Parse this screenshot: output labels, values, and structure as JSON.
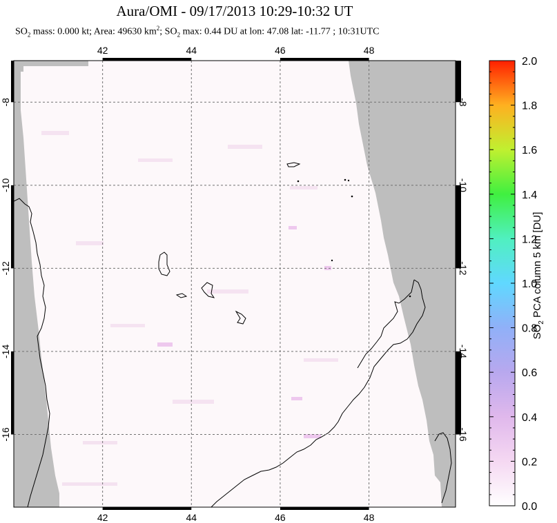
{
  "title": "Aura/OMI - 09/17/2013 10:29-10:32 UT",
  "subtitle": {
    "part1": "SO",
    "sub1": "2",
    "part2": " mass: 0.000 kt; Area: 49630 km",
    "sup1": "2",
    "part3": "; SO",
    "sub2": "2",
    "part4": " max: 0.44 DU at lon: 47.08 lat: -11.77 ; 10:31UTC"
  },
  "map": {
    "lon_ticks": [
      "42",
      "44",
      "46",
      "48"
    ],
    "lat_ticks": [
      "-8",
      "-10",
      "-12",
      "-14",
      "-16"
    ],
    "lon_values": [
      42,
      44,
      46,
      48
    ],
    "lat_values": [
      -8,
      -10,
      -12,
      -14,
      -16
    ],
    "lon_range": [
      40.0,
      49.95
    ],
    "lat_range": [
      -17.75,
      -7.0
    ],
    "grid": true,
    "no_data_color": "#bebebe",
    "background_color": "#fdf8fa",
    "enhanced_pixel_color": "#f2d6f0"
  },
  "colorbar": {
    "title_main": "SO",
    "title_sub": "2",
    "title_rest": " PCA column 5 km [DU]",
    "labels": [
      "2.0",
      "1.8",
      "1.6",
      "1.4",
      "1.2",
      "1.0",
      "0.8",
      "0.6",
      "0.4",
      "0.2",
      "0.0"
    ],
    "range": [
      0.0,
      2.0
    ],
    "colors": [
      "#ffffff",
      "#f2c8f0",
      "#c8a0e6",
      "#9aa0f0",
      "#60c8ff",
      "#58f0f0",
      "#50f0a0",
      "#40f040",
      "#c8f030",
      "#ffd020",
      "#ff8010",
      "#ff2000"
    ]
  }
}
